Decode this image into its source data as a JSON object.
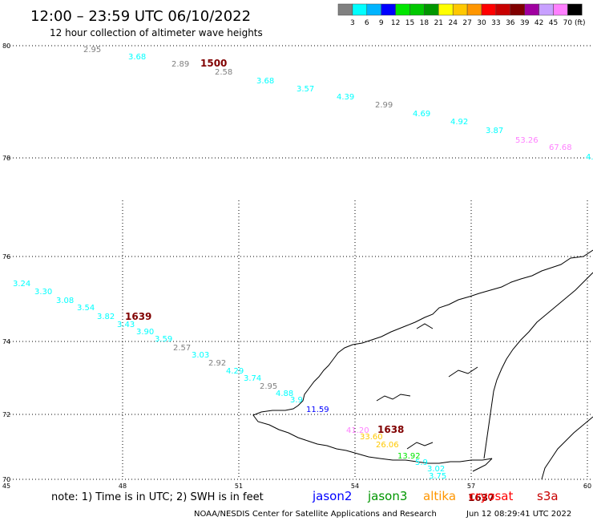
{
  "header": {
    "title": "12:00 – 23:59 UTC 06/10/2022",
    "subtitle": "12 hour collection of altimeter wave heights"
  },
  "colorbar": {
    "unit": "(ft)",
    "bins": [
      {
        "color": "#808080",
        "label": "3"
      },
      {
        "color": "#00ffff",
        "label": "6"
      },
      {
        "color": "#00b4ff",
        "label": "9"
      },
      {
        "color": "#0000ff",
        "label": "12"
      },
      {
        "color": "#00e600",
        "label": "15"
      },
      {
        "color": "#00c800",
        "label": "18"
      },
      {
        "color": "#009600",
        "label": "21"
      },
      {
        "color": "#ffff00",
        "label": "24"
      },
      {
        "color": "#ffc800",
        "label": "27"
      },
      {
        "color": "#ff9600",
        "label": "30"
      },
      {
        "color": "#ff0000",
        "label": "33"
      },
      {
        "color": "#c80000",
        "label": "36"
      },
      {
        "color": "#800000",
        "label": "39"
      },
      {
        "color": "#a000a0",
        "label": "42"
      },
      {
        "color": "#c8a0ff",
        "label": "45"
      },
      {
        "color": "#ff80ff",
        "label": "70"
      },
      {
        "color": "#000000",
        "label": ""
      }
    ]
  },
  "map": {
    "lat_labels": [
      "80",
      "78",
      "76",
      "74",
      "72",
      "70"
    ],
    "lon_labels": [
      "45",
      "48",
      "51",
      "54",
      "57",
      "60"
    ]
  },
  "passes": [
    {
      "time": "1500",
      "color": "#800000"
    },
    {
      "time": "1639",
      "color": "#800000"
    },
    {
      "time": "1638",
      "color": "#800000"
    },
    {
      "time": "1637",
      "color": "#800000"
    }
  ],
  "observations": [
    {
      "value": "2.95",
      "color": "#808080"
    },
    {
      "value": "3.68",
      "color": "#00ffff"
    },
    {
      "value": "2.89",
      "color": "#808080"
    },
    {
      "value": "2.58",
      "color": "#808080"
    },
    {
      "value": "3.68",
      "color": "#00ffff"
    },
    {
      "value": "3.57",
      "color": "#00ffff"
    },
    {
      "value": "4.39",
      "color": "#00ffff"
    },
    {
      "value": "2.99",
      "color": "#808080"
    },
    {
      "value": "4.69",
      "color": "#00ffff"
    },
    {
      "value": "4.92",
      "color": "#00ffff"
    },
    {
      "value": "3.87",
      "color": "#00ffff"
    },
    {
      "value": "53.26",
      "color": "#ff80ff"
    },
    {
      "value": "67.68",
      "color": "#ff80ff"
    },
    {
      "value": "4.",
      "color": "#00ffff"
    },
    {
      "value": "3.24",
      "color": "#00ffff"
    },
    {
      "value": "3.30",
      "color": "#00ffff"
    },
    {
      "value": "3.08",
      "color": "#00ffff"
    },
    {
      "value": "3.54",
      "color": "#00ffff"
    },
    {
      "value": "3.82",
      "color": "#00ffff"
    },
    {
      "value": "3.43",
      "color": "#00ffff"
    },
    {
      "value": "3.90",
      "color": "#00ffff"
    },
    {
      "value": "3.59",
      "color": "#00ffff"
    },
    {
      "value": "2.57",
      "color": "#808080"
    },
    {
      "value": "3.03",
      "color": "#00ffff"
    },
    {
      "value": "2.92",
      "color": "#808080"
    },
    {
      "value": "4.29",
      "color": "#00ffff"
    },
    {
      "value": "3.74",
      "color": "#00ffff"
    },
    {
      "value": "2.95",
      "color": "#808080"
    },
    {
      "value": "4.88",
      "color": "#00ffff"
    },
    {
      "value": "3.9",
      "color": "#00ffff"
    },
    {
      "value": "11.59",
      "color": "#0000ff"
    },
    {
      "value": "41.20",
      "color": "#ff80ff"
    },
    {
      "value": "33.60",
      "color": "#ffc800"
    },
    {
      "value": "26.06",
      "color": "#ffc800"
    },
    {
      "value": "13.92",
      "color": "#00e600"
    },
    {
      "value": "5.9",
      "color": "#00ffff"
    },
    {
      "value": "3.02",
      "color": "#00ffff"
    },
    {
      "value": "3.75",
      "color": "#00ffff"
    }
  ],
  "footer": {
    "note": "note: 1) Time is in UTC; 2) SWH is in feet",
    "legend": [
      {
        "name": "jason2",
        "color": "#0000ff"
      },
      {
        "name": "jason3",
        "color": "#009600"
      },
      {
        "name": "altika",
        "color": "#ff9600"
      },
      {
        "name": "cryosat",
        "color": "#ff0000"
      },
      {
        "name": "s3a",
        "color": "#c80000"
      }
    ],
    "credit": "NOAA/NESDIS Center for Satellite Applications and Research",
    "generated": "Jun 12 08:29:41 UTC 2022"
  }
}
